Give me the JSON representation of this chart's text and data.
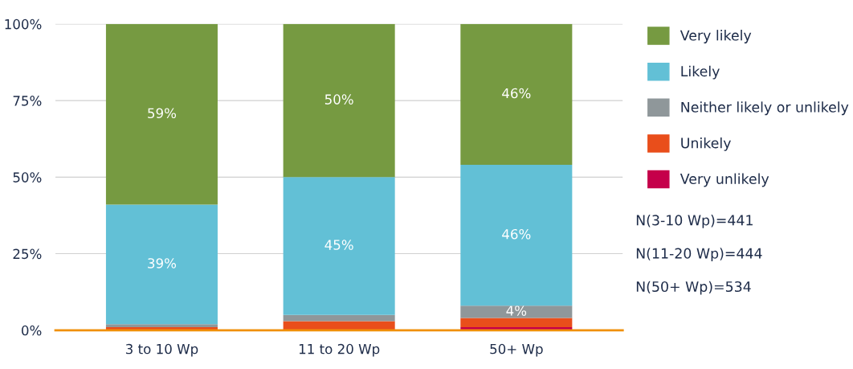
{
  "chart_data": {
    "type": "bar",
    "stacked": true,
    "categories": [
      "3 to 10 Wp",
      "11 to 20 Wp",
      "50+ Wp"
    ],
    "series": [
      {
        "name": "Very unlikely",
        "color": "#c5004a",
        "values": [
          0,
          0,
          1
        ],
        "value_labels": [
          null,
          null,
          null
        ]
      },
      {
        "name": "Unikely",
        "color": "#e94e1b",
        "values": [
          1,
          3,
          3
        ],
        "value_labels": [
          null,
          null,
          null
        ]
      },
      {
        "name": "Neither likely or unlikely",
        "color": "#8f979a",
        "values": [
          1,
          2,
          4
        ],
        "value_labels": [
          null,
          null,
          "4%"
        ]
      },
      {
        "name": "Likely",
        "color": "#62c0d6",
        "values": [
          39,
          45,
          46
        ],
        "value_labels": [
          "39%",
          "45%",
          "46%"
        ]
      },
      {
        "name": "Very likely",
        "color": "#769a41",
        "values": [
          59,
          50,
          46
        ],
        "value_labels": [
          "59%",
          "50%",
          "46%"
        ]
      }
    ],
    "ylim": [
      0,
      100
    ],
    "yticks": [
      {
        "value": 0,
        "label": "0%"
      },
      {
        "value": 25,
        "label": "25%"
      },
      {
        "value": 50,
        "label": "50%"
      },
      {
        "value": 75,
        "label": "75%"
      },
      {
        "value": 100,
        "label": "100%"
      }
    ],
    "grid": "y",
    "legend": "right",
    "annotations": [
      "N(3-10 Wp)=441",
      "N(11-20 Wp)=444",
      "N(50+ Wp)=534"
    ]
  }
}
